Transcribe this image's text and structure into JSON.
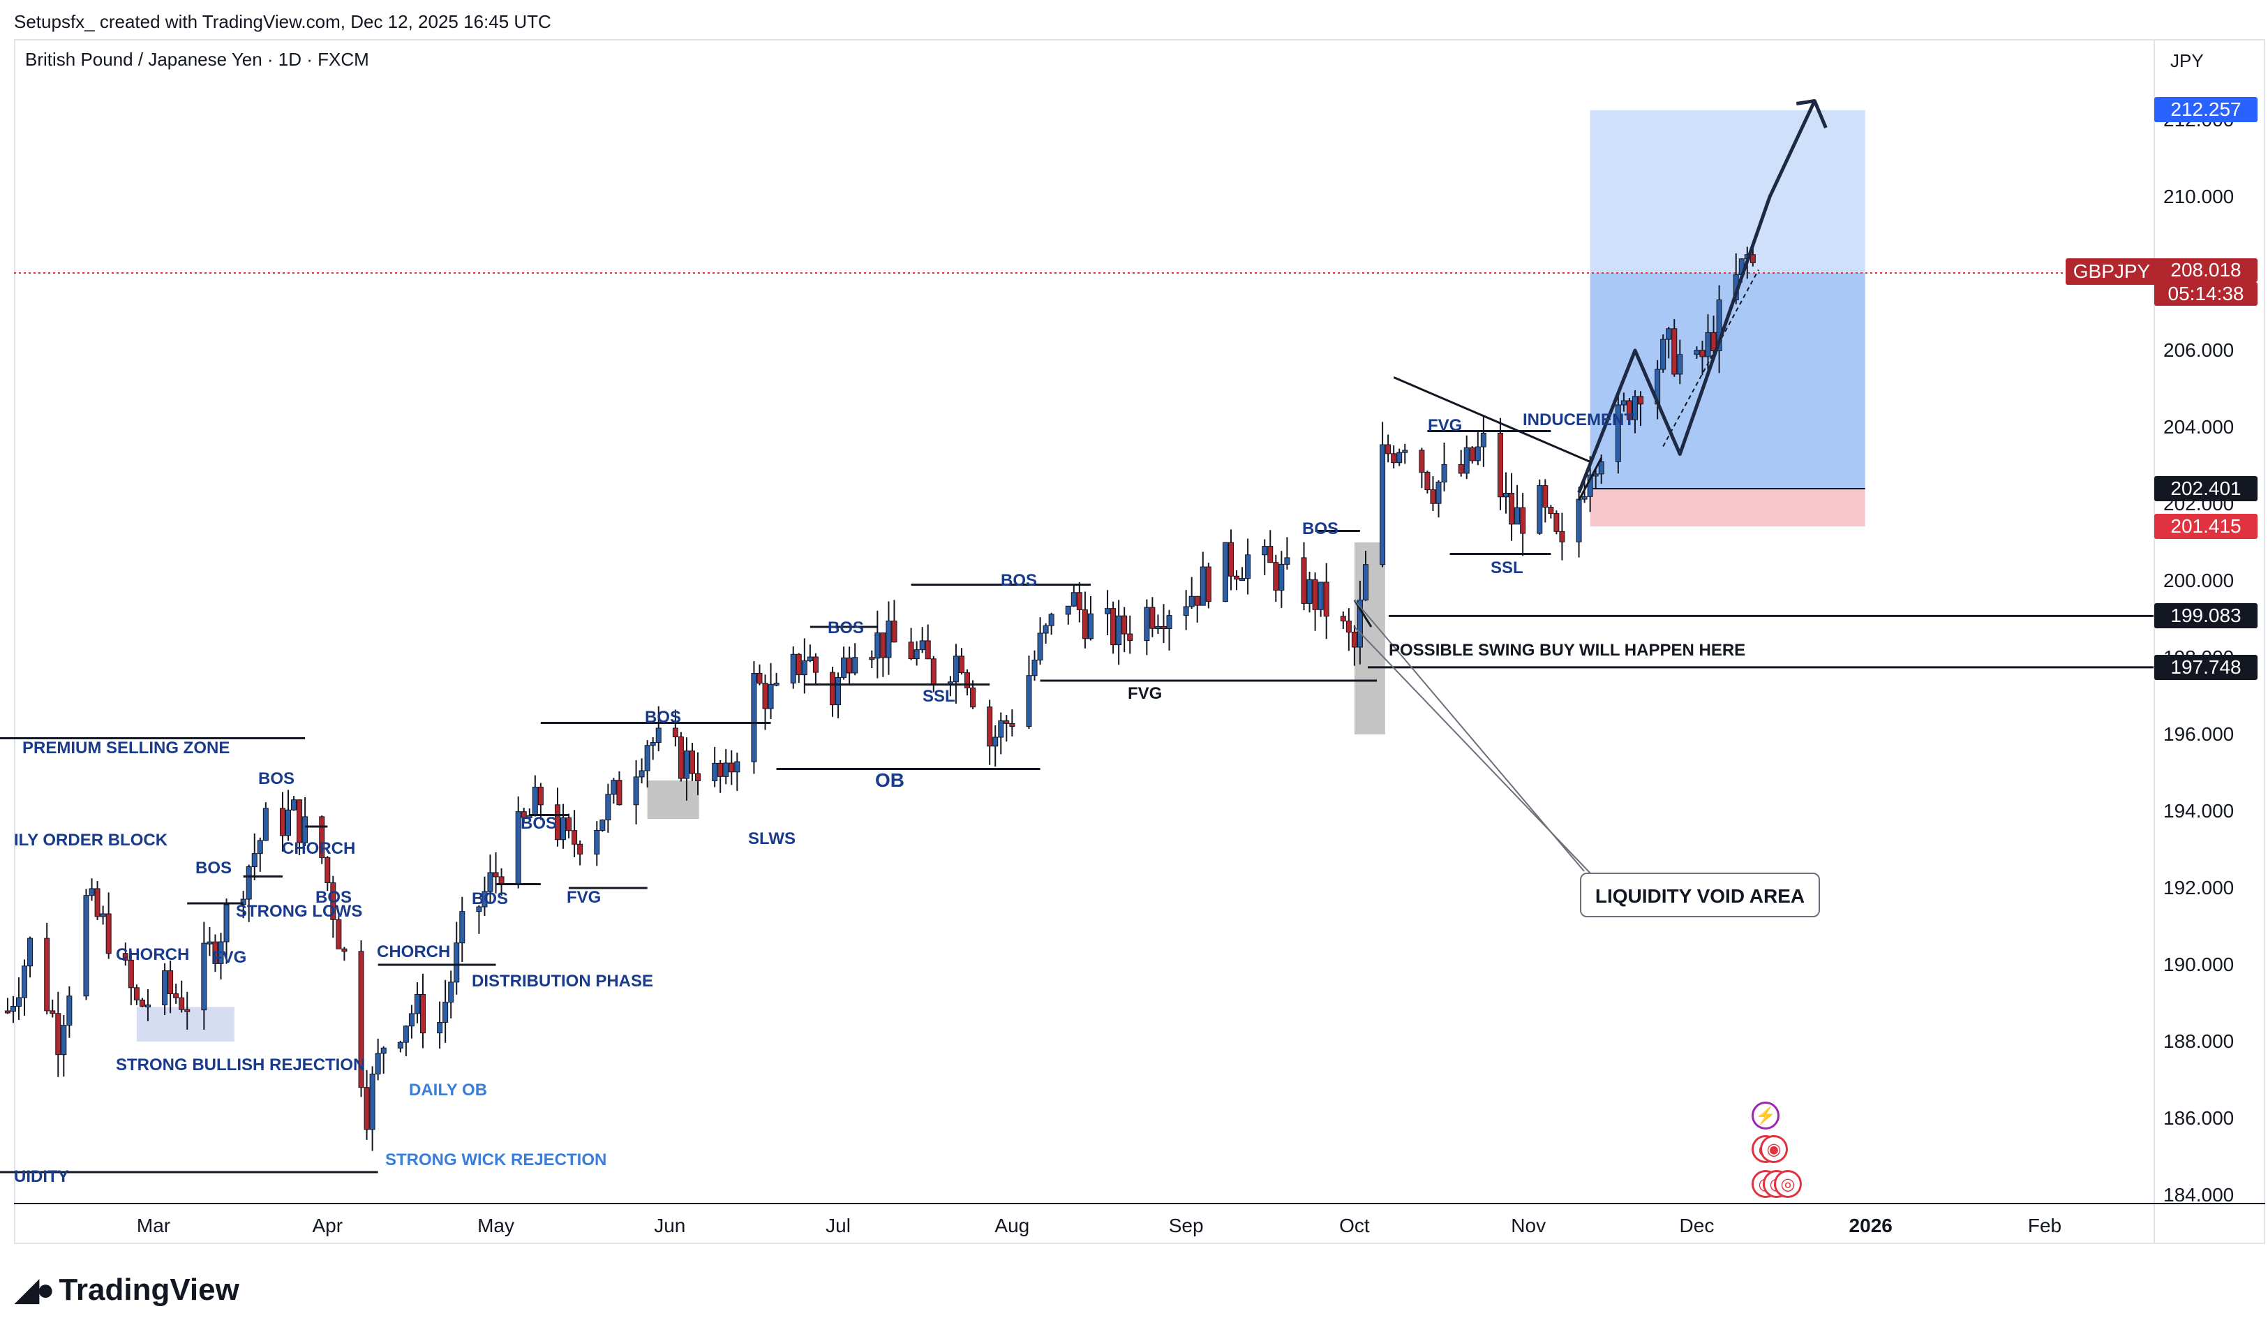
{
  "header": {
    "text": "Setupsfx_  created with TradingView.com, Dec 12, 2025 16:45 UTC"
  },
  "chart": {
    "symbol_title": "British Pound / Japanese Yen · 1D · FXCM",
    "currency": "JPY",
    "ticker": "GBPJPY",
    "last_price": "208.018",
    "countdown": "05:14:38"
  },
  "price_labels": {
    "target": "212.257",
    "entry": "202.401",
    "stop": "201.415",
    "level_1": "199.083",
    "level_2": "197.748"
  },
  "colors": {
    "bull": "#2d5ea8",
    "bear": "#b2262e",
    "target_zone": "#a9c8f5",
    "stop_zone": "#f7c6cb",
    "grid_line": "#131722"
  },
  "annotations": {
    "premium": "PREMIUM SELLING ZONE",
    "daily_order_block": "ILY ORDER BLOCK",
    "choch1": "CHORCH",
    "bos1": "BOS",
    "bos2": "BOS",
    "choch2": "CHORCH",
    "bos3": "BOS",
    "strong_lows": "STRONG LOWS",
    "fvg1": "FVG",
    "strong_bullish": "STRONG BULLISH REJECTION",
    "liquidity": "UIDITY",
    "choch3": "CHORCH",
    "daily_ob": "DAILY OB",
    "strong_wick": "STRONG WICK REJECTION",
    "bos4": "BOS",
    "bos5": "BOS",
    "fvg2": "FVG",
    "distribution": "DISTRIBUTION PHASE",
    "bos6": "BOS",
    "slws": "SLWS",
    "bos7": "BOS",
    "ssl1": "SSL",
    "ob": "OB",
    "bos8": "BOS",
    "fvg3": "FVG",
    "bos9": "BOS",
    "fvg4": "FVG",
    "inducement": "INDUCEMENT",
    "ssl2": "SSL",
    "swing_buy": "POSSIBLE SWING BUY WILL HAPPEN HERE",
    "liquidity_void": "LIQUIDITY VOID AREA"
  },
  "brand": "TradingView",
  "chart_data": {
    "type": "candlestick",
    "title": "British Pound / Japanese Yen · 1D · FXCM",
    "y_axis_label": "JPY",
    "ylim": [
      183.8,
      213.0
    ],
    "y_ticks": [
      "184.000",
      "186.000",
      "188.000",
      "190.000",
      "192.000",
      "194.000",
      "196.000",
      "198.000",
      "200.000",
      "202.000",
      "204.000",
      "206.000",
      "208.000",
      "210.000",
      "212.000"
    ],
    "x_ticks": [
      {
        "label": "Mar",
        "date": "2025-03-01"
      },
      {
        "label": "Apr",
        "date": "2025-04-01"
      },
      {
        "label": "May",
        "date": "2025-05-01"
      },
      {
        "label": "Jun",
        "date": "2025-06-01"
      },
      {
        "label": "Jul",
        "date": "2025-07-01"
      },
      {
        "label": "Aug",
        "date": "2025-08-01"
      },
      {
        "label": "Sep",
        "date": "2025-09-01"
      },
      {
        "label": "Oct",
        "date": "2025-10-01"
      },
      {
        "label": "Nov",
        "date": "2025-11-01"
      },
      {
        "label": "Dec",
        "date": "2025-12-01"
      },
      {
        "label": "2026",
        "date": "2026-01-01"
      },
      {
        "label": "Feb",
        "date": "2026-02-01"
      }
    ],
    "closes": [
      {
        "date": "2025-02-03",
        "close": 188.8
      },
      {
        "date": "2025-02-07",
        "close": 190.5
      },
      {
        "date": "2025-02-12",
        "close": 188.2
      },
      {
        "date": "2025-02-17",
        "close": 191.6
      },
      {
        "date": "2025-02-21",
        "close": 190.8
      },
      {
        "date": "2025-02-26",
        "close": 188.9
      },
      {
        "date": "2025-03-03",
        "close": 189.3
      },
      {
        "date": "2025-03-07",
        "close": 189.1
      },
      {
        "date": "2025-03-12",
        "close": 190.6
      },
      {
        "date": "2025-03-17",
        "close": 192.3
      },
      {
        "date": "2025-03-21",
        "close": 193.6
      },
      {
        "date": "2025-03-26",
        "close": 193.9
      },
      {
        "date": "2025-03-31",
        "close": 192.8
      },
      {
        "date": "2025-04-04",
        "close": 190.2
      },
      {
        "date": "2025-04-08",
        "close": 186.3
      },
      {
        "date": "2025-04-11",
        "close": 188.0
      },
      {
        "date": "2025-04-16",
        "close": 188.8
      },
      {
        "date": "2025-04-21",
        "close": 188.5
      },
      {
        "date": "2025-04-25",
        "close": 190.8
      },
      {
        "date": "2025-04-30",
        "close": 192.1
      },
      {
        "date": "2025-05-05",
        "close": 193.4
      },
      {
        "date": "2025-05-09",
        "close": 194.3
      },
      {
        "date": "2025-05-14",
        "close": 193.1
      },
      {
        "date": "2025-05-19",
        "close": 193.8
      },
      {
        "date": "2025-05-23",
        "close": 194.5
      },
      {
        "date": "2025-05-28",
        "close": 195.9
      },
      {
        "date": "2025-06-02",
        "close": 195.4
      },
      {
        "date": "2025-06-06",
        "close": 195.2
      },
      {
        "date": "2025-06-11",
        "close": 194.7
      },
      {
        "date": "2025-06-16",
        "close": 197.3
      },
      {
        "date": "2025-06-20",
        "close": 196.9
      },
      {
        "date": "2025-06-25",
        "close": 198.1
      },
      {
        "date": "2025-06-30",
        "close": 197.0
      },
      {
        "date": "2025-07-04",
        "close": 198.6
      },
      {
        "date": "2025-07-09",
        "close": 198.4
      },
      {
        "date": "2025-07-14",
        "close": 198.2
      },
      {
        "date": "2025-07-18",
        "close": 197.6
      },
      {
        "date": "2025-07-23",
        "close": 198.1
      },
      {
        "date": "2025-07-28",
        "close": 195.8
      },
      {
        "date": "2025-08-01",
        "close": 196.5
      },
      {
        "date": "2025-08-06",
        "close": 198.3
      },
      {
        "date": "2025-08-11",
        "close": 199.6
      },
      {
        "date": "2025-08-15",
        "close": 198.9
      },
      {
        "date": "2025-08-20",
        "close": 198.6
      },
      {
        "date": "2025-08-25",
        "close": 199.2
      },
      {
        "date": "2025-08-29",
        "close": 199.4
      },
      {
        "date": "2025-09-03",
        "close": 199.8
      },
      {
        "date": "2025-09-08",
        "close": 200.4
      },
      {
        "date": "2025-09-12",
        "close": 200.6
      },
      {
        "date": "2025-09-17",
        "close": 200.2
      },
      {
        "date": "2025-09-22",
        "close": 199.8
      },
      {
        "date": "2025-09-26",
        "close": 199.3
      },
      {
        "date": "2025-10-01",
        "close": 198.2
      },
      {
        "date": "2025-10-06",
        "close": 203.2
      },
      {
        "date": "2025-10-10",
        "close": 203.8
      },
      {
        "date": "2025-10-15",
        "close": 202.5
      },
      {
        "date": "2025-10-20",
        "close": 202.8
      },
      {
        "date": "2025-10-24",
        "close": 203.5
      },
      {
        "date": "2025-10-29",
        "close": 201.6
      },
      {
        "date": "2025-11-03",
        "close": 201.9
      },
      {
        "date": "2025-11-07",
        "close": 200.6
      },
      {
        "date": "2025-11-12",
        "close": 203.2
      },
      {
        "date": "2025-11-17",
        "close": 204.1
      },
      {
        "date": "2025-11-21",
        "close": 205.2
      },
      {
        "date": "2025-11-26",
        "close": 206.0
      },
      {
        "date": "2025-12-01",
        "close": 205.5
      },
      {
        "date": "2025-12-05",
        "close": 206.8
      },
      {
        "date": "2025-12-10",
        "close": 208.4
      },
      {
        "date": "2025-12-12",
        "close": 208.0
      }
    ],
    "levels": {
      "target": 212.257,
      "entry": 202.401,
      "stop": 201.415,
      "last": 208.018,
      "level_1": 199.083,
      "level_2": 197.748
    },
    "position_zones": {
      "target_zone": {
        "from": 202.401,
        "to": 212.257,
        "start": "2025-11-12",
        "end": "2025-12-31"
      },
      "stop_zone": {
        "from": 201.415,
        "to": 202.401,
        "start": "2025-11-12",
        "end": "2025-12-31"
      }
    },
    "projection_path": [
      {
        "date": "2025-11-10",
        "price": 202.3
      },
      {
        "date": "2025-11-20",
        "price": 206.0
      },
      {
        "date": "2025-11-28",
        "price": 203.3
      },
      {
        "date": "2025-12-14",
        "price": 210.0
      },
      {
        "date": "2025-12-22",
        "price": 212.5
      },
      {
        "date": "2025-12-24",
        "price": 211.8
      }
    ]
  }
}
